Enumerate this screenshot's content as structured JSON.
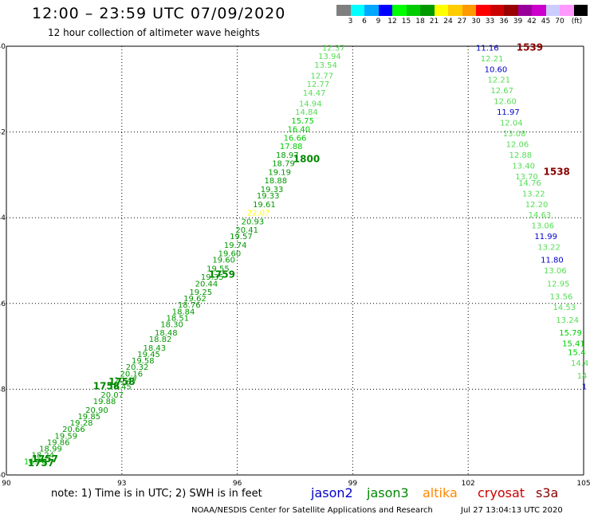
{
  "header": {
    "title": "12:00 – 23:59 UTC 07/09/2020",
    "subtitle": "12 hour collection of altimeter wave heights"
  },
  "colorbar": {
    "colors": [
      "#7f7f7f",
      "#00ffff",
      "#00a8ff",
      "#0000ff",
      "#00ff00",
      "#00cc00",
      "#009900",
      "#ffff00",
      "#ffcc00",
      "#ff9900",
      "#ff0000",
      "#cc0000",
      "#990000",
      "#990099",
      "#cc00cc",
      "#ccccff",
      "#ff99ff",
      "#000000"
    ],
    "labels": [
      "3",
      "6",
      "9",
      "12",
      "15",
      "18",
      "21",
      "24",
      "27",
      "30",
      "33",
      "36",
      "39",
      "42",
      "45",
      "70",
      "(ft)"
    ]
  },
  "footer": {
    "note": "note:  1) Time is in UTC;  2) SWH is in feet",
    "legend": [
      {
        "name": "jason2",
        "color": "#0000cc"
      },
      {
        "name": "jason3",
        "color": "#008800"
      },
      {
        "name": "altika",
        "color": "#ff8800"
      },
      {
        "name": "cryosat",
        "color": "#cc0000"
      },
      {
        "name": "s3a",
        "color": "#880000"
      }
    ],
    "credit": "NOAA/NESDIS Center for Satellite Applications and Research",
    "timestamp": "Jul 27 13:04:13 UTC 2020"
  },
  "chart_data": {
    "type": "scatter",
    "xlim": [
      90,
      105
    ],
    "ylim": [
      -50,
      -40
    ],
    "x_ticks": [
      "90",
      "93",
      "96",
      "99",
      "102",
      "105"
    ],
    "y_ticks": [
      "-40",
      "-42",
      "-44",
      "-46",
      "-48",
      "-50"
    ],
    "grid": true,
    "value_units": "ft",
    "time_labels": [
      {
        "text": "1539",
        "lon": 103.6,
        "lat": -40.1,
        "color": "#880000"
      },
      {
        "text": "1538",
        "lon": 104.3,
        "lat": -43.0,
        "color": "#880000"
      },
      {
        "text": "1800",
        "lon": 97.8,
        "lat": -42.7,
        "color": "#008800"
      },
      {
        "text": "1759",
        "lon": 95.6,
        "lat": -45.4,
        "color": "#008800"
      },
      {
        "text": "1758",
        "lon": 93.0,
        "lat": -47.9,
        "color": "#008800"
      },
      {
        "text": "1758",
        "lon": 92.6,
        "lat": -48.0,
        "color": "#008800"
      },
      {
        "text": "1757",
        "lon": 91.0,
        "lat": -49.7,
        "color": "#008800"
      },
      {
        "text": "1757",
        "lon": 90.9,
        "lat": -49.8,
        "color": "#008800"
      }
    ],
    "series": [
      {
        "name": "s3a",
        "points": [
          {
            "lon": 102.5,
            "lat": -40.1,
            "v": "11.16"
          },
          {
            "lon": 102.62,
            "lat": -40.35,
            "v": "12.21"
          },
          {
            "lon": 102.72,
            "lat": -40.6,
            "v": "10.60"
          },
          {
            "lon": 102.8,
            "lat": -40.85,
            "v": "12.21"
          },
          {
            "lon": 102.88,
            "lat": -41.1,
            "v": "12.67"
          },
          {
            "lon": 102.96,
            "lat": -41.35,
            "v": "12.60"
          },
          {
            "lon": 103.04,
            "lat": -41.6,
            "v": "11.97"
          },
          {
            "lon": 103.12,
            "lat": -41.85,
            "v": "12.04"
          },
          {
            "lon": 103.2,
            "lat": -42.1,
            "v": "13.08"
          },
          {
            "lon": 103.28,
            "lat": -42.35,
            "v": "12.06"
          },
          {
            "lon": 103.36,
            "lat": -42.6,
            "v": "12.88"
          },
          {
            "lon": 103.44,
            "lat": -42.85,
            "v": "13.40"
          },
          {
            "lon": 103.52,
            "lat": -43.1,
            "v": "13.70"
          },
          {
            "lon": 103.6,
            "lat": -43.25,
            "v": "14.76"
          },
          {
            "lon": 103.7,
            "lat": -43.5,
            "v": "13.22"
          },
          {
            "lon": 103.78,
            "lat": -43.75,
            "v": "12.20"
          },
          {
            "lon": 103.86,
            "lat": -44.0,
            "v": "14.63"
          },
          {
            "lon": 103.94,
            "lat": -44.25,
            "v": "13.06"
          },
          {
            "lon": 104.02,
            "lat": -44.5,
            "v": "11.99"
          },
          {
            "lon": 104.1,
            "lat": -44.75,
            "v": "13.22"
          },
          {
            "lon": 104.18,
            "lat": -45.05,
            "v": "11.80"
          },
          {
            "lon": 104.26,
            "lat": -45.3,
            "v": "13.06"
          },
          {
            "lon": 104.34,
            "lat": -45.6,
            "v": "12.95"
          },
          {
            "lon": 104.42,
            "lat": -45.9,
            "v": "13.56"
          },
          {
            "lon": 104.5,
            "lat": -46.15,
            "v": "14.53"
          },
          {
            "lon": 104.58,
            "lat": -46.45,
            "v": "13.24"
          },
          {
            "lon": 104.66,
            "lat": -46.75,
            "v": "15.79"
          },
          {
            "lon": 104.74,
            "lat": -47.0,
            "v": "15.41"
          },
          {
            "lon": 104.82,
            "lat": -47.2,
            "v": "15.4"
          },
          {
            "lon": 104.9,
            "lat": -47.45,
            "v": "14.4"
          },
          {
            "lon": 104.96,
            "lat": -47.75,
            "v": "14"
          },
          {
            "lon": 105.02,
            "lat": -48.0,
            "v": "1"
          }
        ]
      },
      {
        "name": "jason3",
        "points": [
          {
            "lon": 98.5,
            "lat": -40.1,
            "v": "12.37"
          },
          {
            "lon": 98.4,
            "lat": -40.3,
            "v": "13.94"
          },
          {
            "lon": 98.3,
            "lat": -40.5,
            "v": "13.54"
          },
          {
            "lon": 98.2,
            "lat": -40.75,
            "v": "12.77"
          },
          {
            "lon": 98.1,
            "lat": -40.95,
            "v": "12.77"
          },
          {
            "lon": 98.0,
            "lat": -41.15,
            "v": "14.47"
          },
          {
            "lon": 97.9,
            "lat": -41.4,
            "v": "14.94"
          },
          {
            "lon": 97.8,
            "lat": -41.6,
            "v": "14.84"
          },
          {
            "lon": 97.7,
            "lat": -41.8,
            "v": "15.75"
          },
          {
            "lon": 97.6,
            "lat": -42.0,
            "v": "16.40"
          },
          {
            "lon": 97.5,
            "lat": -42.2,
            "v": "16.66"
          },
          {
            "lon": 97.4,
            "lat": -42.4,
            "v": "17.88"
          },
          {
            "lon": 97.3,
            "lat": -42.6,
            "v": "18.97"
          },
          {
            "lon": 97.2,
            "lat": -42.8,
            "v": "18.79"
          },
          {
            "lon": 97.1,
            "lat": -43.0,
            "v": "19.19"
          },
          {
            "lon": 97.0,
            "lat": -43.2,
            "v": "18.88"
          },
          {
            "lon": 96.9,
            "lat": -43.4,
            "v": "19.33"
          },
          {
            "lon": 96.8,
            "lat": -43.55,
            "v": "19.33"
          },
          {
            "lon": 96.7,
            "lat": -43.75,
            "v": "19.61"
          },
          {
            "lon": 96.55,
            "lat": -43.95,
            "v": "22.07"
          },
          {
            "lon": 96.4,
            "lat": -44.15,
            "v": "20.93"
          },
          {
            "lon": 96.25,
            "lat": -44.35,
            "v": "20.41"
          },
          {
            "lon": 96.1,
            "lat": -44.5,
            "v": "19.57"
          },
          {
            "lon": 95.95,
            "lat": -44.7,
            "v": "19.74"
          },
          {
            "lon": 95.8,
            "lat": -44.9,
            "v": "19.60"
          },
          {
            "lon": 95.65,
            "lat": -45.05,
            "v": "19.60"
          },
          {
            "lon": 95.5,
            "lat": -45.25,
            "v": "19.55"
          },
          {
            "lon": 95.35,
            "lat": -45.45,
            "v": "19.35"
          },
          {
            "lon": 95.2,
            "lat": -45.6,
            "v": "20.44"
          },
          {
            "lon": 95.05,
            "lat": -45.8,
            "v": "19.25"
          },
          {
            "lon": 94.9,
            "lat": -45.95,
            "v": "19.62"
          },
          {
            "lon": 94.75,
            "lat": -46.1,
            "v": "18.76"
          },
          {
            "lon": 94.6,
            "lat": -46.25,
            "v": "18.84"
          },
          {
            "lon": 94.45,
            "lat": -46.4,
            "v": "18.51"
          },
          {
            "lon": 94.3,
            "lat": -46.55,
            "v": "18.30"
          },
          {
            "lon": 94.15,
            "lat": -46.75,
            "v": "18.48"
          },
          {
            "lon": 94.0,
            "lat": -46.9,
            "v": "18.82"
          },
          {
            "lon": 93.85,
            "lat": -47.1,
            "v": "18.43"
          },
          {
            "lon": 93.7,
            "lat": -47.25,
            "v": "19.45"
          },
          {
            "lon": 93.55,
            "lat": -47.4,
            "v": "19.58"
          },
          {
            "lon": 93.4,
            "lat": -47.55,
            "v": "20.32"
          },
          {
            "lon": 93.25,
            "lat": -47.7,
            "v": "20.16"
          },
          {
            "lon": 93.1,
            "lat": -47.85,
            "v": "20.47"
          },
          {
            "lon": 92.95,
            "lat": -48.0,
            "v": "19.45"
          },
          {
            "lon": 92.75,
            "lat": -48.2,
            "v": "20.07"
          },
          {
            "lon": 92.55,
            "lat": -48.35,
            "v": "19.88"
          },
          {
            "lon": 92.35,
            "lat": -48.55,
            "v": "20.90"
          },
          {
            "lon": 92.15,
            "lat": -48.7,
            "v": "19.85"
          },
          {
            "lon": 91.95,
            "lat": -48.85,
            "v": "19.28"
          },
          {
            "lon": 91.75,
            "lat": -49.0,
            "v": "20.66"
          },
          {
            "lon": 91.55,
            "lat": -49.15,
            "v": "19.59"
          },
          {
            "lon": 91.35,
            "lat": -49.3,
            "v": "19.86"
          },
          {
            "lon": 91.15,
            "lat": -49.45,
            "v": "18.99"
          },
          {
            "lon": 90.95,
            "lat": -49.6,
            "v": "18.24"
          },
          {
            "lon": 90.75,
            "lat": -49.75,
            "v": "16.76"
          }
        ]
      }
    ]
  }
}
